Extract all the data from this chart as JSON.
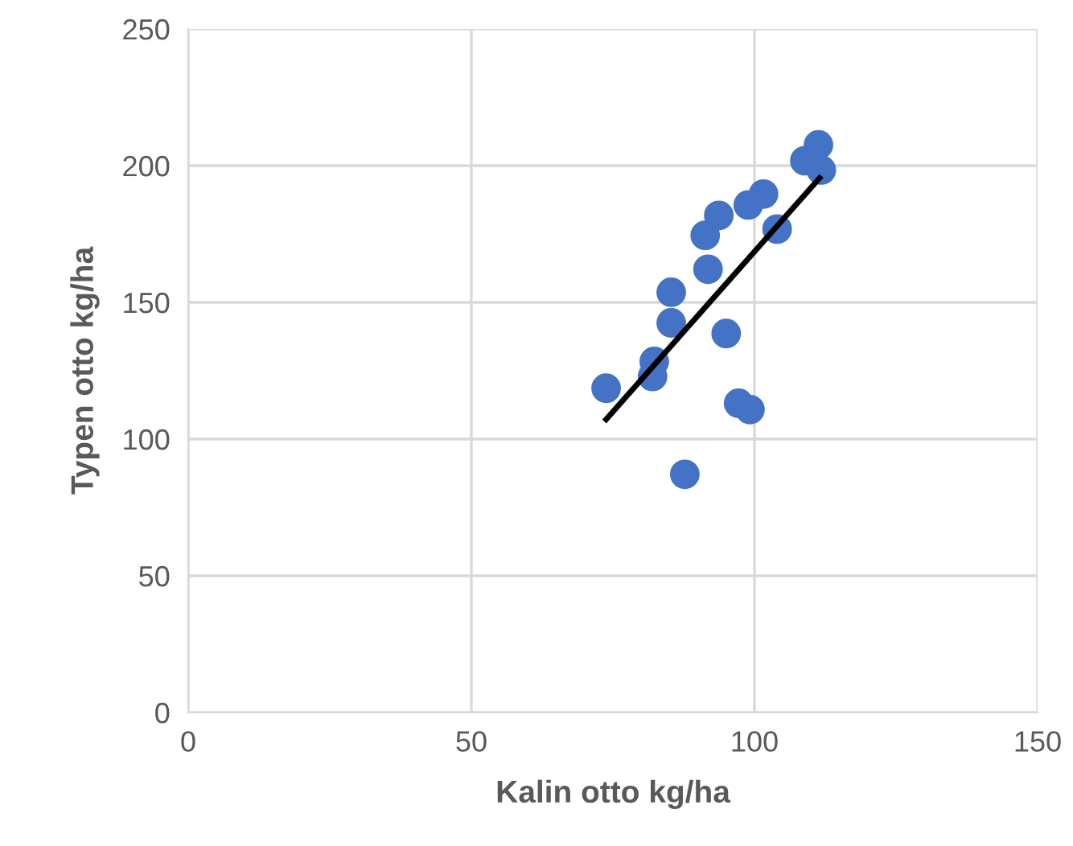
{
  "chart_data": {
    "type": "scatter",
    "xlabel": "Kalin otto kg/ha",
    "ylabel": "Typen otto kg/ha",
    "xlim": [
      0,
      150
    ],
    "xticks": [
      0,
      50,
      100,
      150
    ],
    "ylim": [
      0,
      250
    ],
    "yticks": [
      0,
      50,
      100,
      150,
      200,
      250
    ],
    "grid": true,
    "series": [
      {
        "marker": "circle",
        "color": "#4472c4",
        "x": [
          73.8,
          82.3,
          82.0,
          85.3,
          85.3,
          87.7,
          91.3,
          91.8,
          93.7,
          95.0,
          97.2,
          99.2,
          98.9,
          101.6,
          104.0,
          108.9,
          111.3,
          111.8
        ],
        "values": [
          118.6,
          128.4,
          122.9,
          153.7,
          142.5,
          87.1,
          174.5,
          162.1,
          181.8,
          138.6,
          113.1,
          110.8,
          185.6,
          189.6,
          176.8,
          201.8,
          207.6,
          198.4
        ]
      },
      {
        "type": "line",
        "marker": "none",
        "color": "#000000",
        "x": [
          73.8,
          111.5
        ],
        "values": [
          107.2,
          195.5
        ]
      }
    ]
  }
}
